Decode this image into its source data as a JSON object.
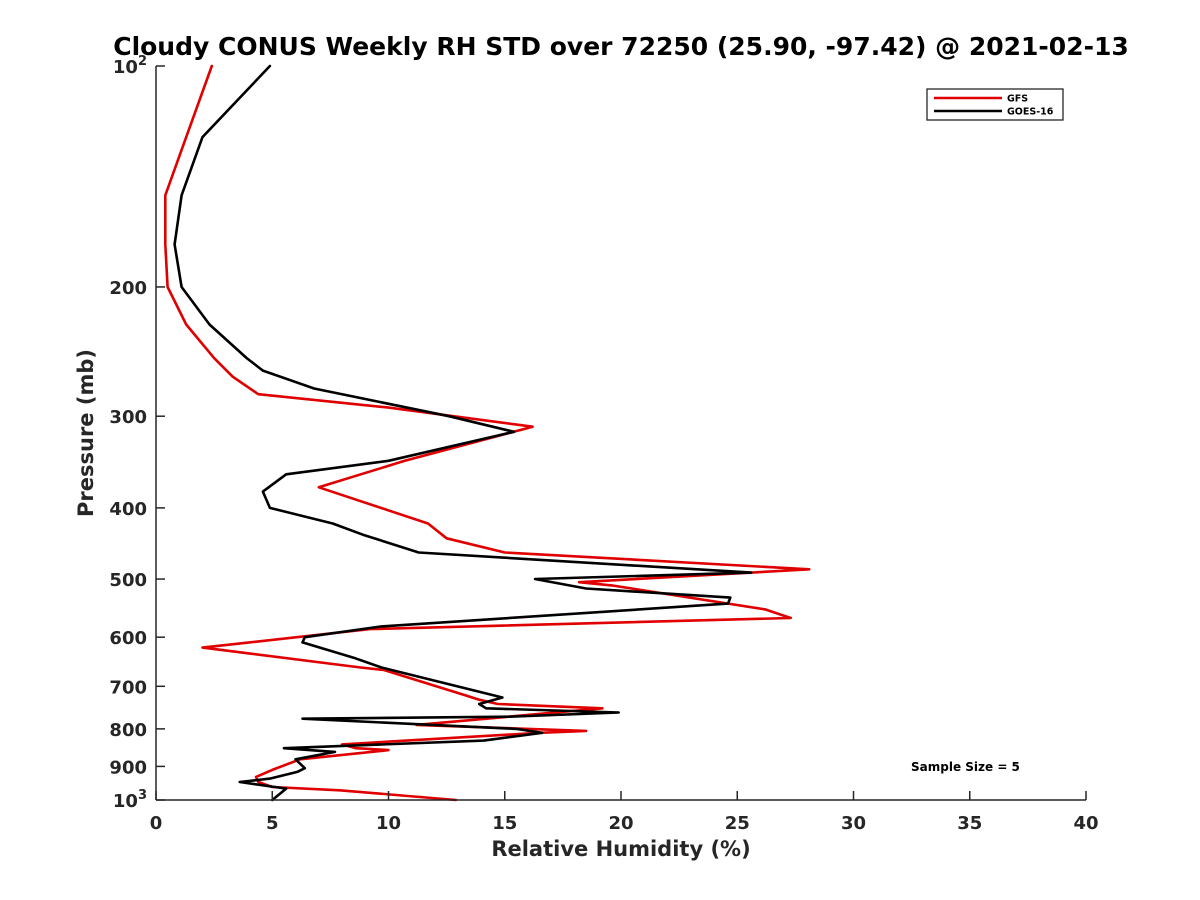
{
  "chart_data": {
    "type": "line",
    "title": "Cloudy CONUS Weekly RH STD over 72250 (25.90, -97.42) @ 2021-02-13",
    "xlabel": "Relative Humidity (%)",
    "ylabel": "Pressure (mb)",
    "xlim": [
      0,
      40
    ],
    "ylim": [
      100,
      1000
    ],
    "y_scale": "log",
    "y_reversed": true,
    "x_ticks": [
      "0",
      "5",
      "10",
      "15",
      "20",
      "25",
      "30",
      "35",
      "40"
    ],
    "y_ticks": [
      {
        "value": 100,
        "base": "10",
        "exp": "2"
      },
      {
        "value": 200,
        "label": "200"
      },
      {
        "value": 300,
        "label": "300"
      },
      {
        "value": 400,
        "label": "400"
      },
      {
        "value": 500,
        "label": "500"
      },
      {
        "value": 600,
        "label": "600"
      },
      {
        "value": 700,
        "label": "700"
      },
      {
        "value": 800,
        "label": "800"
      },
      {
        "value": 900,
        "label": "900"
      },
      {
        "value": 1000,
        "base": "10",
        "exp": "3"
      }
    ],
    "grid": false,
    "legend_position": "top-right",
    "annotation": "Sample Size = 5",
    "series": [
      {
        "name": "GFS",
        "color": "#e00000",
        "points": [
          [
            2.4,
            100
          ],
          [
            1.3,
            125
          ],
          [
            0.4,
            150
          ],
          [
            0.4,
            175
          ],
          [
            0.5,
            200
          ],
          [
            1.3,
            225
          ],
          [
            2.5,
            250
          ],
          [
            3.3,
            265
          ],
          [
            4.4,
            280
          ],
          [
            10.0,
            292
          ],
          [
            16.2,
            310
          ],
          [
            10.7,
            345
          ],
          [
            7.0,
            375
          ],
          [
            11.7,
            420
          ],
          [
            12.5,
            440
          ],
          [
            15.0,
            460
          ],
          [
            28.1,
            485
          ],
          [
            18.2,
            505
          ],
          [
            19.6,
            510
          ],
          [
            26.2,
            550
          ],
          [
            27.3,
            565
          ],
          [
            9.2,
            585
          ],
          [
            2.0,
            620
          ],
          [
            8.8,
            660
          ],
          [
            9.8,
            665
          ],
          [
            13.3,
            720
          ],
          [
            13.9,
            730
          ],
          [
            14.7,
            740
          ],
          [
            19.2,
            750
          ],
          [
            11.2,
            790
          ],
          [
            18.5,
            805
          ],
          [
            16.5,
            810
          ],
          [
            8.0,
            840
          ],
          [
            8.6,
            850
          ],
          [
            10.0,
            855
          ],
          [
            6.2,
            880
          ],
          [
            5.0,
            910
          ],
          [
            4.3,
            930
          ],
          [
            4.4,
            945
          ],
          [
            5.0,
            960
          ],
          [
            7.9,
            970
          ],
          [
            12.9,
            1000
          ]
        ]
      },
      {
        "name": "GOES-16",
        "color": "#000000",
        "points": [
          [
            4.9,
            100
          ],
          [
            2.0,
            125
          ],
          [
            1.1,
            150
          ],
          [
            0.8,
            175
          ],
          [
            1.1,
            200
          ],
          [
            2.3,
            225
          ],
          [
            3.9,
            250
          ],
          [
            4.6,
            260
          ],
          [
            6.8,
            275
          ],
          [
            12.6,
            300
          ],
          [
            15.4,
            315
          ],
          [
            10.0,
            345
          ],
          [
            5.6,
            360
          ],
          [
            4.6,
            380
          ],
          [
            4.9,
            400
          ],
          [
            7.6,
            420
          ],
          [
            8.9,
            435
          ],
          [
            11.3,
            460
          ],
          [
            25.6,
            490
          ],
          [
            16.3,
            500
          ],
          [
            18.5,
            515
          ],
          [
            24.7,
            530
          ],
          [
            24.6,
            540
          ],
          [
            9.7,
            580
          ],
          [
            6.4,
            600
          ],
          [
            6.3,
            610
          ],
          [
            8.5,
            640
          ],
          [
            9.7,
            660
          ],
          [
            14.9,
            725
          ],
          [
            13.9,
            740
          ],
          [
            14.2,
            750
          ],
          [
            19.9,
            760
          ],
          [
            15.2,
            770
          ],
          [
            6.3,
            775
          ],
          [
            15.5,
            800
          ],
          [
            16.6,
            810
          ],
          [
            14.1,
            830
          ],
          [
            5.5,
            850
          ],
          [
            7.7,
            860
          ],
          [
            6.0,
            880
          ],
          [
            6.4,
            905
          ],
          [
            6.1,
            915
          ],
          [
            4.9,
            935
          ],
          [
            3.6,
            945
          ],
          [
            5.6,
            965
          ],
          [
            5.0,
            1000
          ]
        ]
      }
    ]
  }
}
